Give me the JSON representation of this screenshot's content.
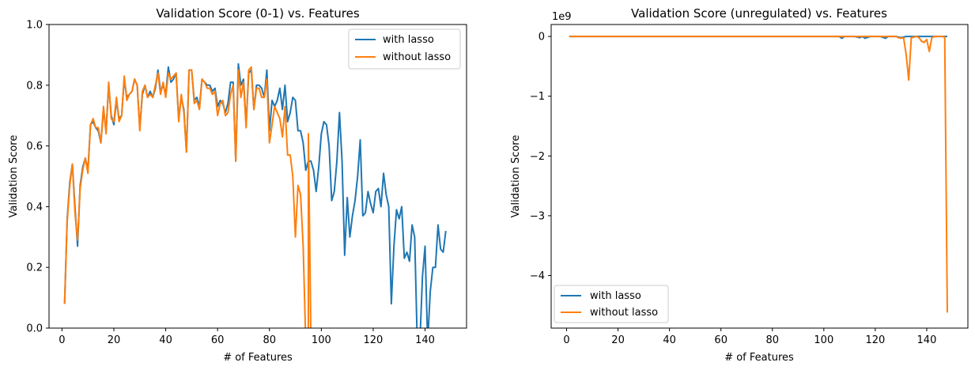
{
  "chart_data": [
    {
      "type": "line",
      "title": "Validation Score (0-1) vs. Features",
      "xlabel": "# of Features",
      "ylabel": "Validation Score",
      "xlim": [
        -5,
        156
      ],
      "ylim": [
        0,
        1
      ],
      "xticks": [
        0,
        20,
        40,
        60,
        80,
        100,
        120,
        140
      ],
      "yticks": [
        0.0,
        0.2,
        0.4,
        0.6,
        0.8,
        1.0
      ],
      "xtick_labels": [
        "0",
        "20",
        "40",
        "60",
        "80",
        "100",
        "120",
        "140"
      ],
      "ytick_labels": [
        "0.0",
        "0.2",
        "0.4",
        "0.6",
        "0.8",
        "1.0"
      ],
      "legend": {
        "location": "upper right",
        "entries": [
          "with lasso",
          "without lasso"
        ]
      },
      "series": [
        {
          "name": "with lasso",
          "color": "#1f77b4",
          "x": [
            1,
            2,
            3,
            4,
            5,
            6,
            7,
            8,
            9,
            10,
            11,
            12,
            13,
            14,
            15,
            16,
            17,
            18,
            19,
            20,
            21,
            22,
            23,
            24,
            25,
            26,
            27,
            28,
            29,
            30,
            31,
            32,
            33,
            34,
            35,
            36,
            37,
            38,
            39,
            40,
            41,
            42,
            43,
            44,
            45,
            46,
            47,
            48,
            49,
            50,
            51,
            52,
            53,
            54,
            55,
            56,
            57,
            58,
            59,
            60,
            61,
            62,
            63,
            64,
            65,
            66,
            67,
            68,
            69,
            70,
            71,
            72,
            73,
            74,
            75,
            76,
            77,
            78,
            79,
            80,
            81,
            82,
            83,
            84,
            85,
            86,
            87,
            88,
            89,
            90,
            91,
            92,
            93,
            94,
            95,
            96,
            97,
            98,
            99,
            100,
            101,
            102,
            103,
            104,
            105,
            106,
            107,
            108,
            109,
            110,
            111,
            112,
            113,
            114,
            115,
            116,
            117,
            118,
            119,
            120,
            121,
            122,
            123,
            124,
            125,
            126,
            127,
            128,
            129,
            130,
            131,
            132,
            133,
            134,
            135,
            136,
            137,
            138,
            139,
            140,
            141,
            142,
            143,
            144,
            145,
            146,
            147,
            148
          ],
          "y": [
            0.08,
            0.36,
            0.48,
            0.54,
            0.4,
            0.27,
            0.47,
            0.53,
            0.56,
            0.52,
            0.67,
            0.68,
            0.66,
            0.65,
            0.61,
            0.72,
            0.65,
            0.8,
            0.7,
            0.67,
            0.75,
            0.69,
            0.7,
            0.82,
            0.76,
            0.77,
            0.78,
            0.82,
            0.8,
            0.66,
            0.77,
            0.8,
            0.76,
            0.78,
            0.76,
            0.79,
            0.85,
            0.78,
            0.8,
            0.77,
            0.86,
            0.81,
            0.82,
            0.84,
            0.69,
            0.76,
            0.72,
            0.58,
            0.85,
            0.85,
            0.75,
            0.76,
            0.73,
            0.82,
            0.81,
            0.8,
            0.8,
            0.78,
            0.79,
            0.73,
            0.75,
            0.74,
            0.71,
            0.74,
            0.81,
            0.81,
            0.55,
            0.87,
            0.8,
            0.82,
            0.67,
            0.84,
            0.85,
            0.72,
            0.8,
            0.8,
            0.79,
            0.76,
            0.85,
            0.65,
            0.75,
            0.73,
            0.75,
            0.79,
            0.72,
            0.8,
            0.68,
            0.71,
            0.76,
            0.75,
            0.65,
            0.65,
            0.61,
            0.52,
            0.55,
            0.55,
            0.52,
            0.45,
            0.53,
            0.64,
            0.68,
            0.67,
            0.6,
            0.42,
            0.45,
            0.55,
            0.71,
            0.55,
            0.24,
            0.43,
            0.3,
            0.37,
            0.42,
            0.5,
            0.62,
            0.37,
            0.38,
            0.45,
            0.41,
            0.38,
            0.45,
            0.46,
            0.4,
            0.51,
            0.44,
            0.4,
            0.08,
            0.27,
            0.39,
            0.36,
            0.4,
            0.23,
            0.25,
            0.22,
            0.34,
            0.3,
            -0.05,
            -0.05,
            0.17,
            0.27,
            -0.05,
            0.12,
            0.2,
            0.2,
            0.34,
            0.26,
            0.25,
            0.32
          ]
        },
        {
          "name": "without lasso",
          "color": "#ff7f0e",
          "x": [
            1,
            2,
            3,
            4,
            5,
            6,
            7,
            8,
            9,
            10,
            11,
            12,
            13,
            14,
            15,
            16,
            17,
            18,
            19,
            20,
            21,
            22,
            23,
            24,
            25,
            26,
            27,
            28,
            29,
            30,
            31,
            32,
            33,
            34,
            35,
            36,
            37,
            38,
            39,
            40,
            41,
            42,
            43,
            44,
            45,
            46,
            47,
            48,
            49,
            50,
            51,
            52,
            53,
            54,
            55,
            56,
            57,
            58,
            59,
            60,
            61,
            62,
            63,
            64,
            65,
            66,
            67,
            68,
            69,
            70,
            71,
            72,
            73,
            74,
            75,
            76,
            77,
            78,
            79,
            80,
            81,
            82,
            83,
            84,
            85,
            86,
            87,
            88,
            89,
            90,
            91,
            92,
            93,
            94,
            95,
            95.01,
            96
          ],
          "y": [
            0.08,
            0.35,
            0.47,
            0.54,
            0.38,
            0.29,
            0.46,
            0.52,
            0.56,
            0.51,
            0.67,
            0.69,
            0.66,
            0.66,
            0.61,
            0.73,
            0.64,
            0.81,
            0.69,
            0.68,
            0.76,
            0.68,
            0.7,
            0.83,
            0.75,
            0.77,
            0.78,
            0.82,
            0.8,
            0.65,
            0.78,
            0.8,
            0.76,
            0.77,
            0.76,
            0.8,
            0.84,
            0.77,
            0.81,
            0.76,
            0.84,
            0.82,
            0.83,
            0.84,
            0.68,
            0.77,
            0.71,
            0.58,
            0.85,
            0.85,
            0.74,
            0.75,
            0.72,
            0.82,
            0.81,
            0.79,
            0.79,
            0.77,
            0.78,
            0.7,
            0.74,
            0.75,
            0.7,
            0.71,
            0.77,
            0.8,
            0.55,
            0.85,
            0.76,
            0.81,
            0.66,
            0.85,
            0.86,
            0.72,
            0.79,
            0.79,
            0.76,
            0.76,
            0.82,
            0.61,
            0.67,
            0.73,
            0.71,
            0.69,
            0.63,
            0.73,
            0.57,
            0.57,
            0.5,
            0.3,
            0.47,
            0.44,
            0.27,
            -0.05,
            -0.05,
            0.64,
            -0.05
          ]
        }
      ]
    },
    {
      "type": "line",
      "title": "Validation Score (unregulated) vs. Features",
      "xlabel": "# of Features",
      "ylabel": "Validation Score",
      "offset_text": "1e9",
      "xlim": [
        -6,
        156
      ],
      "ylim": [
        -4.88,
        0.2
      ],
      "xticks": [
        0,
        20,
        40,
        60,
        80,
        100,
        120,
        140
      ],
      "yticks": [
        -4,
        -3,
        -2,
        -1,
        0
      ],
      "xtick_labels": [
        "0",
        "20",
        "40",
        "60",
        "80",
        "100",
        "120",
        "140"
      ],
      "ytick_labels": [
        "−4",
        "−3",
        "−2",
        "−1",
        "0"
      ],
      "legend": {
        "location": "lower left",
        "entries": [
          "with lasso",
          "without lasso"
        ]
      },
      "series": [
        {
          "name": "with lasso",
          "color": "#1f77b4",
          "x": [
            1,
            20,
            40,
            60,
            80,
            100,
            105,
            106,
            107,
            108,
            110,
            112,
            114,
            115,
            116,
            118,
            120,
            122,
            124,
            125,
            126,
            128,
            130,
            132,
            134,
            136,
            138,
            140,
            142,
            144,
            146,
            148
          ],
          "y": [
            0,
            0,
            0,
            0,
            0,
            0,
            0,
            0,
            -0.03,
            0,
            0,
            0,
            -0.02,
            0,
            -0.03,
            0,
            0,
            0,
            -0.03,
            0,
            0,
            0,
            -0.02,
            0,
            0,
            0,
            0,
            0,
            0,
            0,
            0,
            0
          ]
        },
        {
          "name": "without lasso",
          "color": "#ff7f0e",
          "x": [
            1,
            20,
            40,
            60,
            80,
            100,
            110,
            112,
            114,
            116,
            118,
            120,
            122,
            124,
            126,
            128,
            129,
            130,
            131,
            132,
            133,
            134,
            135,
            136,
            137,
            138,
            139,
            140,
            141,
            142,
            143,
            144,
            145,
            146,
            147,
            148
          ],
          "y": [
            0,
            0,
            0,
            0,
            0,
            0,
            0,
            0,
            0,
            0,
            0,
            0,
            0,
            0,
            0,
            0,
            -0.02,
            -0.03,
            -0.02,
            -0.3,
            -0.73,
            -0.02,
            -0.01,
            0,
            -0.02,
            -0.08,
            -0.1,
            -0.05,
            -0.25,
            -0.02,
            0,
            0,
            0,
            0,
            -0.01,
            -4.62
          ]
        }
      ]
    }
  ]
}
